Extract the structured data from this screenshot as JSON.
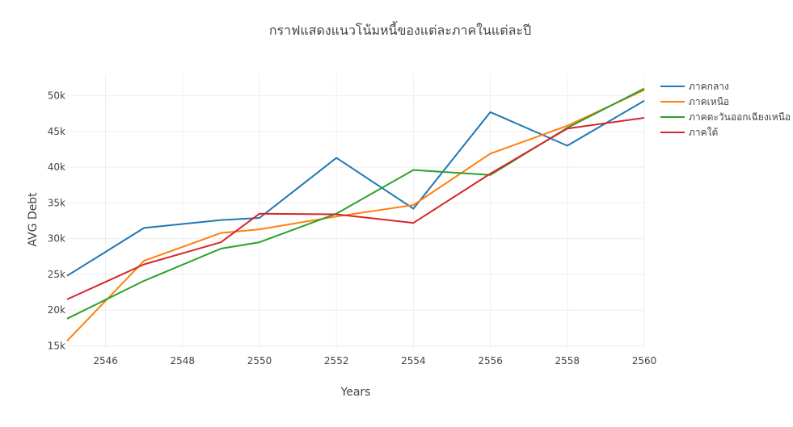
{
  "chart_data": {
    "type": "line",
    "title": "กราฟแสดงแนวโน้มหนี้ของแต่ละภาคในแต่ละปี",
    "xlabel": "Years",
    "ylabel": "AVG Debt",
    "xlim": [
      2545,
      2560
    ],
    "ylim": [
      14600,
      53000
    ],
    "x_ticks": [
      2546,
      2548,
      2550,
      2552,
      2554,
      2556,
      2558,
      2560
    ],
    "x_tick_labels": [
      "2546",
      "2548",
      "2550",
      "2552",
      "2554",
      "2556",
      "2558",
      "2560"
    ],
    "y_ticks": [
      15000,
      20000,
      25000,
      30000,
      35000,
      40000,
      45000,
      50000
    ],
    "y_tick_labels": [
      "15k",
      "20k",
      "25k",
      "30k",
      "35k",
      "40k",
      "45k",
      "50k"
    ],
    "grid": true,
    "legend_position": "top-right",
    "x": [
      2545,
      2547,
      2549,
      2550,
      2552,
      2554,
      2556,
      2558,
      2560
    ],
    "series": [
      {
        "name": "ภาคกลาง",
        "color": "#1f77b4",
        "values": [
          24800,
          31500,
          32600,
          32900,
          41300,
          34200,
          47700,
          43000,
          49300
        ]
      },
      {
        "name": "ภาคเหนือ",
        "color": "#ff7f0e",
        "values": [
          15700,
          26900,
          30800,
          31300,
          33100,
          34700,
          41900,
          45800,
          50800
        ]
      },
      {
        "name": "ภาคตะวันออกเฉียงเหนือ",
        "color": "#2ca02c",
        "values": [
          18800,
          24100,
          28600,
          29500,
          33500,
          39600,
          38900,
          45500,
          51000
        ]
      },
      {
        "name": "ภาคใต้",
        "color": "#d62728",
        "values": [
          21500,
          26400,
          29500,
          33500,
          33400,
          32200,
          39100,
          45400,
          46900
        ]
      }
    ]
  }
}
